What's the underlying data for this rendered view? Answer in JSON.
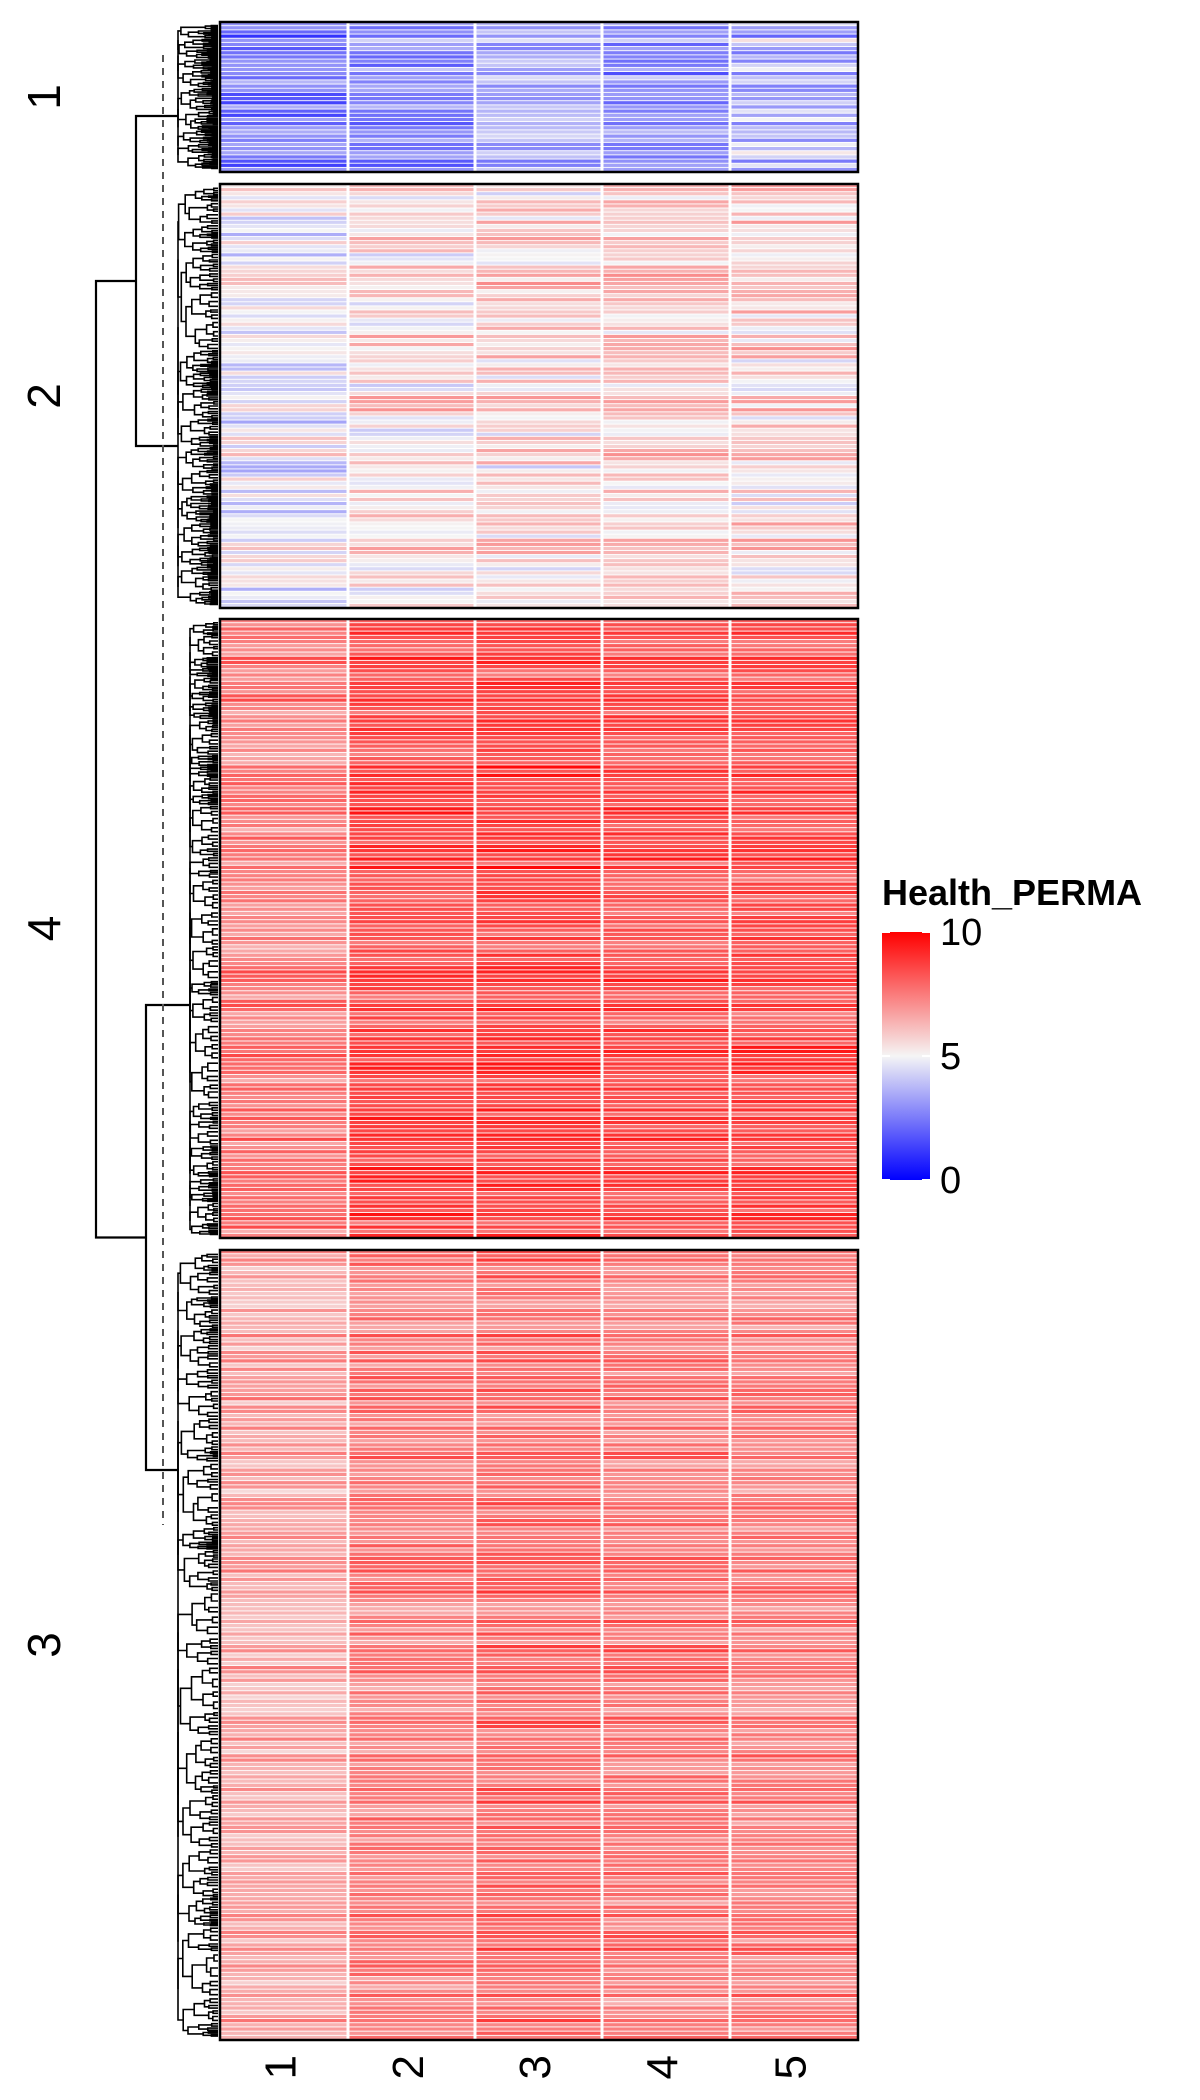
{
  "chart_data": {
    "type": "heatmap",
    "columns": [
      "1",
      "2",
      "3",
      "4",
      "5"
    ],
    "legend": {
      "title": "Health_PERMA",
      "ticks": [
        "0",
        "5",
        "10"
      ],
      "range": [
        0,
        10
      ],
      "colors": {
        "low": "#0000ff",
        "mid": "#f5f5f5",
        "high": "#ff0000"
      }
    },
    "row_slices": [
      {
        "label": "1",
        "row_count": 36,
        "column_profiles": [
          [
            2.4,
            1.0
          ],
          [
            2.8,
            1.0
          ],
          [
            3.4,
            0.8
          ],
          [
            3.0,
            0.9
          ],
          [
            3.6,
            1.3
          ]
        ]
      },
      {
        "label": "2",
        "row_count": 104,
        "column_profiles": [
          [
            4.8,
            1.1
          ],
          [
            5.4,
            1.0
          ],
          [
            5.6,
            1.0
          ],
          [
            5.8,
            0.7
          ],
          [
            5.6,
            1.1
          ]
        ]
      },
      {
        "label": "4",
        "row_count": 148,
        "column_profiles": [
          [
            7.5,
            0.6
          ],
          [
            8.5,
            0.6
          ],
          [
            8.6,
            0.6
          ],
          [
            8.4,
            0.5
          ],
          [
            8.4,
            0.6
          ]
        ]
      },
      {
        "label": "3",
        "row_count": 188,
        "column_profiles": [
          [
            6.6,
            0.6
          ],
          [
            7.4,
            0.6
          ],
          [
            7.8,
            0.6
          ],
          [
            7.5,
            0.6
          ],
          [
            7.4,
            0.6
          ]
        ]
      }
    ]
  }
}
